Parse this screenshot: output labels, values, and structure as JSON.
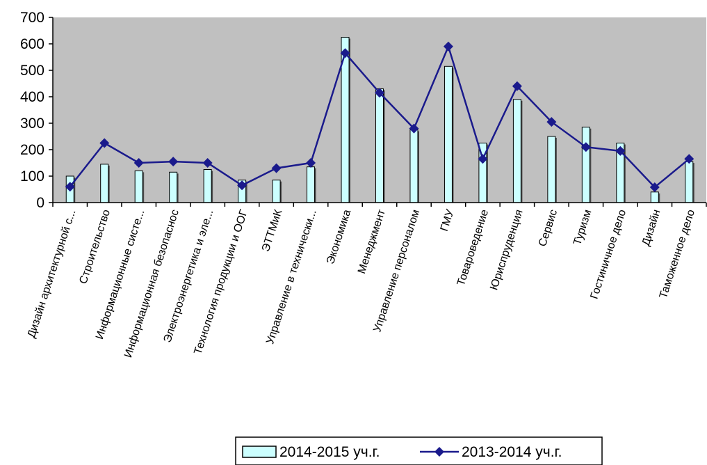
{
  "chart_data": {
    "type": "bar",
    "ylim": [
      0,
      700
    ],
    "yticks": [
      "0",
      "100",
      "200",
      "300",
      "400",
      "500",
      "600",
      "700"
    ],
    "categories": [
      "Дизайн архитектурной с...",
      "Строительство",
      "Информационные систе...",
      "Информационная безопаснос",
      "Электроэнергетика и эле...",
      "Технология продукции и ООГ",
      "ЭТТМиК",
      "Управление в технически...",
      "Экономика",
      "Менеджмент",
      "Управление персоналом",
      "ГМУ",
      "Товароведение",
      "Юриспруденция",
      "Сервис",
      "Туризм",
      "Гостиничное дело",
      "Дизайн",
      "Таможенное дело"
    ],
    "series": [
      {
        "name": "2014-2015 уч.г.",
        "kind": "bar",
        "color": "#ccffff",
        "values": [
          100,
          145,
          120,
          115,
          125,
          85,
          85,
          135,
          625,
          430,
          275,
          515,
          225,
          390,
          250,
          285,
          225,
          40,
          155
        ]
      },
      {
        "name": "2013-2014 уч.г.",
        "kind": "line",
        "color": "#1a1a8c",
        "values": [
          60,
          225,
          150,
          155,
          150,
          65,
          130,
          150,
          565,
          415,
          280,
          590,
          165,
          440,
          305,
          210,
          195,
          58,
          165
        ]
      }
    ],
    "plot_background": "#c0c0c0",
    "grid": false,
    "legend_position": "bottom-right"
  }
}
